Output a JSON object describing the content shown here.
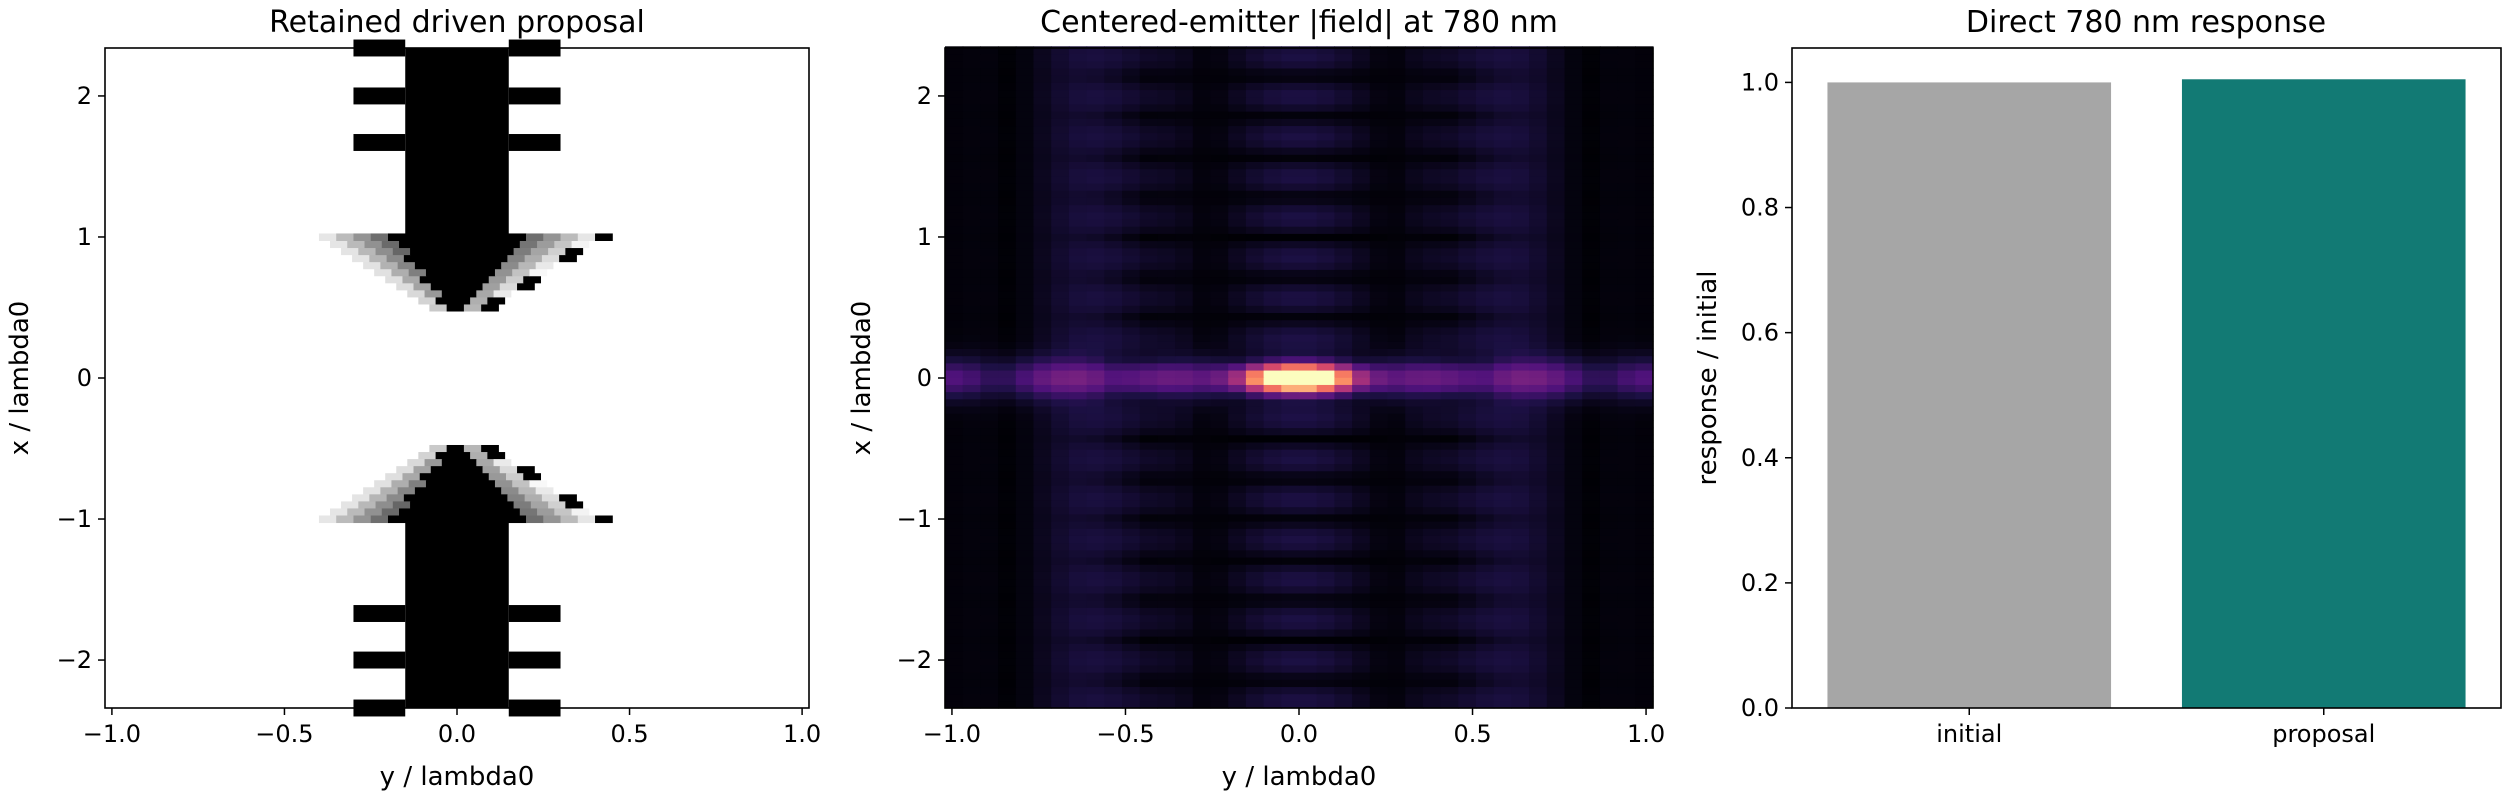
{
  "chart_data": [
    {
      "type": "heatmap",
      "title": "Retained driven proposal",
      "xlabel": "y / lambda0",
      "ylabel": "x / lambda0",
      "xlim": [
        -1.02,
        1.02
      ],
      "ylim": [
        -2.34,
        2.34
      ],
      "xticks": [
        -1.0,
        -0.5,
        0.0,
        0.5,
        1.0
      ],
      "xtick_labels": [
        "−1.0",
        "−0.5",
        "0.0",
        "0.5",
        "1.0"
      ],
      "yticks": [
        -2,
        -1,
        0,
        1,
        2
      ],
      "ytick_labels": [
        "−2",
        "−1",
        "0",
        "1",
        "2"
      ],
      "colormap": "gray_r",
      "pixel_size": 0.075,
      "structures": {
        "waveguide_half_width": 0.15,
        "waveguide_x_extent": [
          0.5,
          2.34
        ],
        "fins": {
          "y_extent": [
            0.15,
            0.3
          ],
          "x_centers": [
            1.67,
            2.0,
            2.34
          ],
          "x_half_height": 0.06
        },
        "grey_taper": {
          "x_range": [
            0.5,
            1.0
          ],
          "y_half_width_at_top": 0.4
        }
      }
    },
    {
      "type": "heatmap",
      "title": "Centered-emitter |field| at 780 nm",
      "xlabel": "y / lambda0",
      "ylabel": "x / lambda0",
      "xlim": [
        -1.02,
        1.02
      ],
      "ylim": [
        -2.34,
        2.34
      ],
      "xticks": [
        -1.0,
        -0.5,
        0.0,
        0.5,
        1.0
      ],
      "xtick_labels": [
        "−1.0",
        "−0.5",
        "0.0",
        "0.5",
        "1.0"
      ],
      "yticks": [
        -2,
        -1,
        0,
        1,
        2
      ],
      "ytick_labels": [
        "−2",
        "−1",
        "0",
        "1",
        "2"
      ],
      "colormap": "magma",
      "pixel_size": 0.075,
      "peak_location": [
        0.0,
        0.0
      ]
    },
    {
      "type": "bar",
      "title": "Direct 780 nm response",
      "categories": [
        "initial",
        "proposal"
      ],
      "values": [
        1.0,
        1.005
      ],
      "colors": [
        "#a6a6a6",
        "#127a74"
      ],
      "xlabel": "",
      "ylabel": "response / initial",
      "ylim": [
        0,
        1.055
      ],
      "yticks": [
        0.0,
        0.2,
        0.4,
        0.6,
        0.8,
        1.0
      ],
      "ytick_labels": [
        "0.0",
        "0.2",
        "0.4",
        "0.6",
        "0.8",
        "1.0"
      ]
    }
  ]
}
